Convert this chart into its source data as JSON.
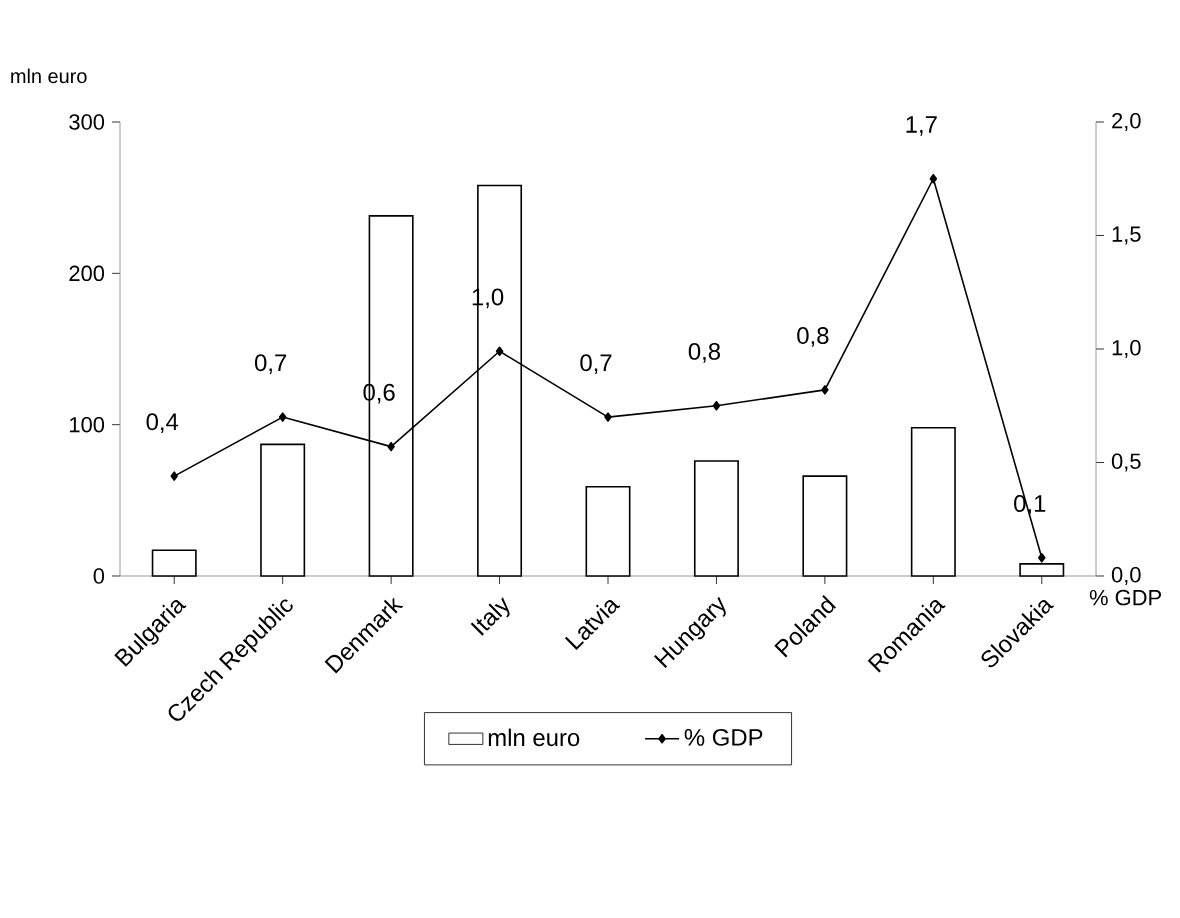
{
  "chart_data": {
    "type": "bar",
    "categories": [
      "Bulgaria",
      "Czech Republic",
      "Denmark",
      "Italy",
      "Latvia",
      "Hungary",
      "Poland",
      "Romania",
      "Slovakia"
    ],
    "series": [
      {
        "name": "mln euro",
        "color": "#ffffff",
        "values": [
          17,
          87,
          238,
          258,
          59,
          76,
          66,
          98,
          8
        ]
      },
      {
        "name": "% GDP",
        "type": "line",
        "axis": "y2",
        "color": "#000000",
        "marker": "diamond",
        "values": [
          0.44,
          0.7,
          0.57,
          0.99,
          0.7,
          0.75,
          0.82,
          1.75,
          0.08
        ],
        "value_labels": [
          "0,4",
          "0,7",
          "0,6",
          "1,0",
          "0,7",
          "0,8",
          "0,8",
          "1,7",
          "0,1"
        ]
      }
    ],
    "ylabel": "mln euro",
    "y2label": "% GDP",
    "ylim": [
      0,
      300
    ],
    "yticks": [
      0,
      100,
      200,
      300
    ],
    "y2lim": [
      0,
      2.0
    ],
    "y2ticks": [
      {
        "value": 0,
        "label": "0,0"
      },
      {
        "value": 0.5,
        "label": "0,5"
      },
      {
        "value": 1.0,
        "label": "1,0"
      },
      {
        "value": 1.5,
        "label": "1,5"
      },
      {
        "value": 2.0,
        "label": "2,0"
      }
    ],
    "legend": "bottom",
    "grid": false
  }
}
